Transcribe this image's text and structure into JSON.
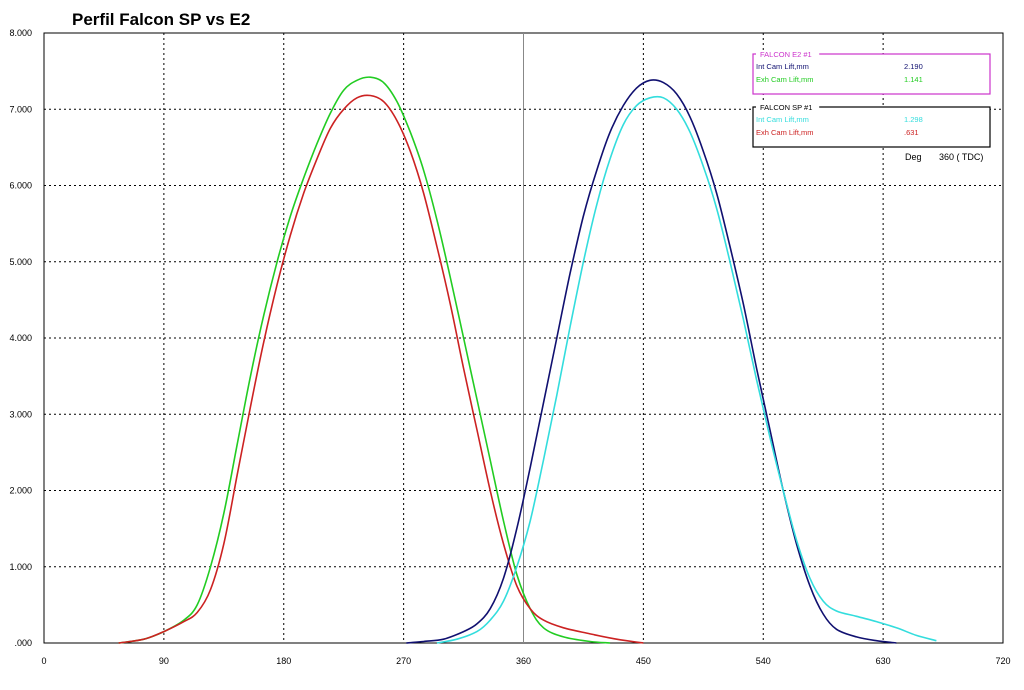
{
  "chart_data": {
    "type": "line",
    "title": "Perfil Falcon SP vs E2",
    "xlim": [
      0,
      720
    ],
    "ylim": [
      0,
      8
    ],
    "x_ticks": [
      "0",
      "90",
      "180",
      "270",
      "360",
      "450",
      "540",
      "630",
      "720"
    ],
    "y_ticks": [
      ".000",
      "1.000",
      "2.000",
      "3.000",
      "4.000",
      "5.000",
      "6.000",
      "7.000",
      "8.000"
    ],
    "grid": true,
    "tdc_marker": 360,
    "series": [
      {
        "color": "#22cc22",
        "points": [
          [
            56,
            0
          ],
          [
            75,
            0.05
          ],
          [
            90,
            0.15
          ],
          [
            105,
            0.3
          ],
          [
            115,
            0.5
          ],
          [
            125,
            1
          ],
          [
            135,
            1.7
          ],
          [
            145,
            2.6
          ],
          [
            155,
            3.5
          ],
          [
            165,
            4.3
          ],
          [
            175,
            5.0
          ],
          [
            185,
            5.6
          ],
          [
            195,
            6.1
          ],
          [
            205,
            6.55
          ],
          [
            215,
            6.95
          ],
          [
            225,
            7.25
          ],
          [
            235,
            7.38
          ],
          [
            245,
            7.42
          ],
          [
            255,
            7.35
          ],
          [
            265,
            7.1
          ],
          [
            275,
            6.7
          ],
          [
            285,
            6.2
          ],
          [
            295,
            5.55
          ],
          [
            305,
            4.8
          ],
          [
            315,
            4.0
          ],
          [
            325,
            3.2
          ],
          [
            335,
            2.4
          ],
          [
            345,
            1.6
          ],
          [
            355,
            0.9
          ],
          [
            365,
            0.45
          ],
          [
            375,
            0.2
          ],
          [
            390,
            0.08
          ],
          [
            410,
            0.02
          ],
          [
            425,
            0
          ]
        ]
      },
      {
        "color": "#cc2222",
        "points": [
          [
            56,
            0
          ],
          [
            75,
            0.05
          ],
          [
            90,
            0.15
          ],
          [
            105,
            0.28
          ],
          [
            115,
            0.4
          ],
          [
            125,
            0.7
          ],
          [
            135,
            1.3
          ],
          [
            145,
            2.2
          ],
          [
            155,
            3.1
          ],
          [
            165,
            3.95
          ],
          [
            175,
            4.7
          ],
          [
            185,
            5.35
          ],
          [
            195,
            5.9
          ],
          [
            205,
            6.35
          ],
          [
            215,
            6.75
          ],
          [
            225,
            7.0
          ],
          [
            235,
            7.15
          ],
          [
            245,
            7.18
          ],
          [
            255,
            7.1
          ],
          [
            265,
            6.85
          ],
          [
            275,
            6.45
          ],
          [
            285,
            5.9
          ],
          [
            295,
            5.2
          ],
          [
            305,
            4.45
          ],
          [
            315,
            3.6
          ],
          [
            325,
            2.8
          ],
          [
            335,
            2.0
          ],
          [
            345,
            1.3
          ],
          [
            355,
            0.75
          ],
          [
            365,
            0.45
          ],
          [
            375,
            0.3
          ],
          [
            390,
            0.2
          ],
          [
            410,
            0.12
          ],
          [
            430,
            0.05
          ],
          [
            450,
            0
          ]
        ]
      },
      {
        "color": "#101070",
        "points": [
          [
            272,
            0
          ],
          [
            285,
            0.02
          ],
          [
            300,
            0.05
          ],
          [
            315,
            0.15
          ],
          [
            325,
            0.25
          ],
          [
            335,
            0.45
          ],
          [
            345,
            0.85
          ],
          [
            355,
            1.5
          ],
          [
            365,
            2.3
          ],
          [
            375,
            3.15
          ],
          [
            385,
            4.0
          ],
          [
            395,
            4.85
          ],
          [
            405,
            5.6
          ],
          [
            415,
            6.2
          ],
          [
            425,
            6.7
          ],
          [
            435,
            7.05
          ],
          [
            445,
            7.28
          ],
          [
            455,
            7.38
          ],
          [
            465,
            7.35
          ],
          [
            475,
            7.2
          ],
          [
            485,
            6.9
          ],
          [
            495,
            6.45
          ],
          [
            505,
            5.9
          ],
          [
            515,
            5.2
          ],
          [
            525,
            4.45
          ],
          [
            535,
            3.6
          ],
          [
            545,
            2.8
          ],
          [
            555,
            2.0
          ],
          [
            565,
            1.3
          ],
          [
            575,
            0.75
          ],
          [
            585,
            0.38
          ],
          [
            595,
            0.18
          ],
          [
            610,
            0.08
          ],
          [
            625,
            0.03
          ],
          [
            640,
            0
          ]
        ]
      },
      {
        "color": "#33dddd",
        "points": [
          [
            295,
            0
          ],
          [
            310,
            0.05
          ],
          [
            325,
            0.15
          ],
          [
            335,
            0.3
          ],
          [
            345,
            0.55
          ],
          [
            355,
            1.0
          ],
          [
            365,
            1.6
          ],
          [
            375,
            2.4
          ],
          [
            385,
            3.25
          ],
          [
            395,
            4.15
          ],
          [
            405,
            5.0
          ],
          [
            415,
            5.75
          ],
          [
            425,
            6.35
          ],
          [
            435,
            6.8
          ],
          [
            445,
            7.05
          ],
          [
            455,
            7.15
          ],
          [
            465,
            7.15
          ],
          [
            475,
            7.0
          ],
          [
            485,
            6.7
          ],
          [
            495,
            6.25
          ],
          [
            505,
            5.7
          ],
          [
            515,
            5.0
          ],
          [
            525,
            4.25
          ],
          [
            535,
            3.45
          ],
          [
            545,
            2.7
          ],
          [
            555,
            2.0
          ],
          [
            565,
            1.35
          ],
          [
            575,
            0.85
          ],
          [
            585,
            0.55
          ],
          [
            595,
            0.42
          ],
          [
            610,
            0.35
          ],
          [
            625,
            0.28
          ],
          [
            640,
            0.2
          ],
          [
            655,
            0.1
          ],
          [
            670,
            0.03
          ]
        ]
      }
    ],
    "legend_boxes": [
      {
        "title": "FALCON E2 #1",
        "border_color": "#cc33cc",
        "rows": [
          {
            "label": "Int Cam Lift,mm",
            "value": "2.190",
            "color": "#101070"
          },
          {
            "label": "Exh Cam Lift,mm",
            "value": "1.141",
            "color": "#22cc22"
          }
        ]
      },
      {
        "title": "FALCON SP #1",
        "border_color": "#000000",
        "rows": [
          {
            "label": "Int Cam Lift,mm",
            "value": "1.298",
            "color": "#33dddd"
          },
          {
            "label": "Exh Cam Lift,mm",
            "value": ".631",
            "color": "#cc2222"
          }
        ]
      }
    ],
    "readout": {
      "label": "Deg",
      "value": "360 ( TDC)"
    }
  }
}
